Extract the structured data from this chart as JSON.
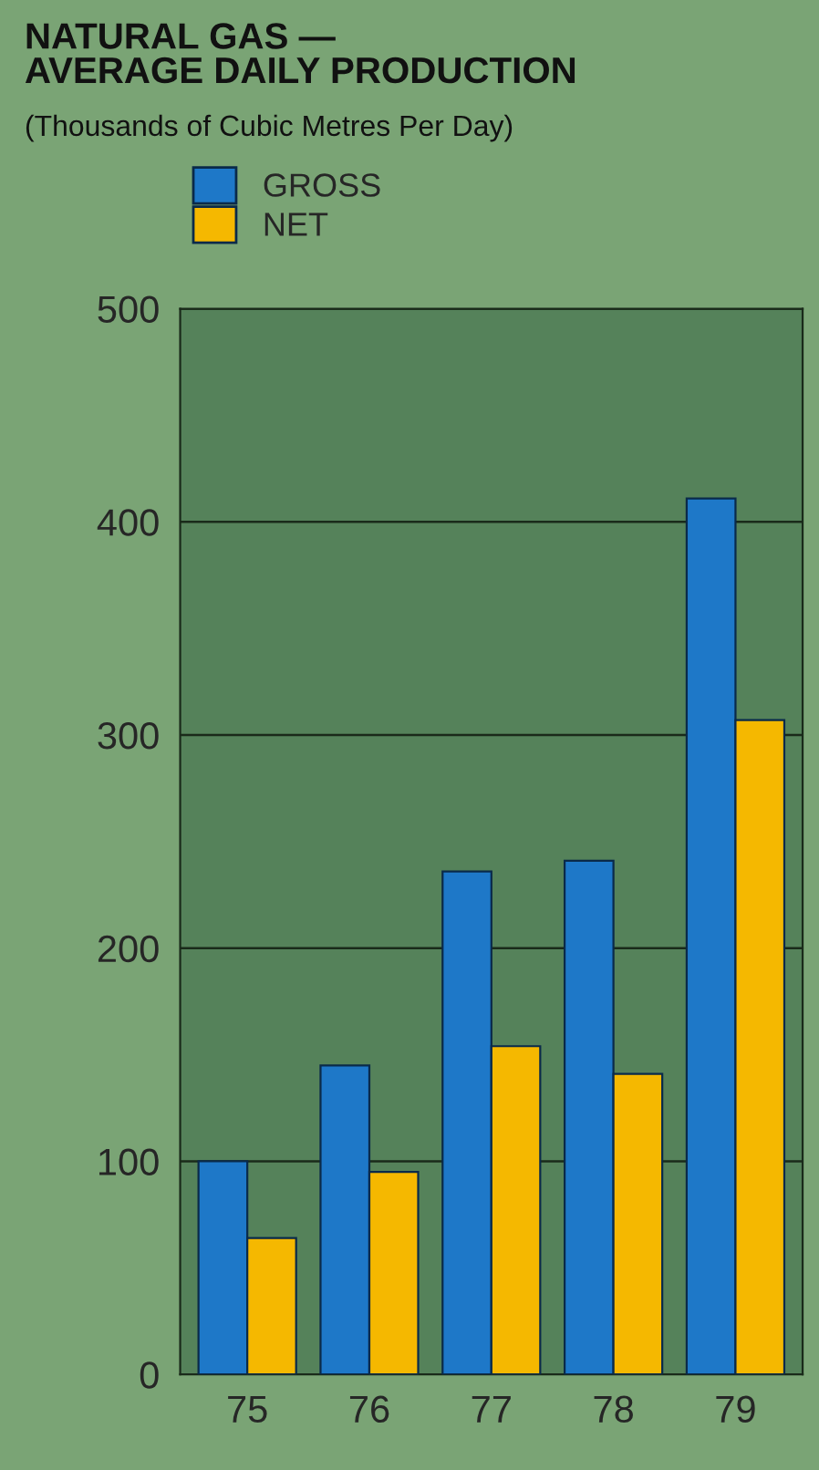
{
  "chart_data": {
    "type": "bar",
    "title": "NATURAL GAS —\nAVERAGE DAILY PRODUCTION",
    "subtitle": "(Thousands of Cubic Metres Per Day)",
    "categories": [
      "75",
      "76",
      "77",
      "78",
      "79"
    ],
    "series": [
      {
        "name": "GROSS",
        "color": "#1e78c8",
        "values": [
          100,
          145,
          236,
          241,
          411
        ]
      },
      {
        "name": "NET",
        "color": "#f5b800",
        "values": [
          64,
          95,
          154,
          141,
          307
        ]
      }
    ],
    "ylim": [
      0,
      500
    ],
    "yticks": [
      0,
      100,
      200,
      300,
      400,
      500
    ],
    "grid": "y",
    "legend": "top left"
  }
}
